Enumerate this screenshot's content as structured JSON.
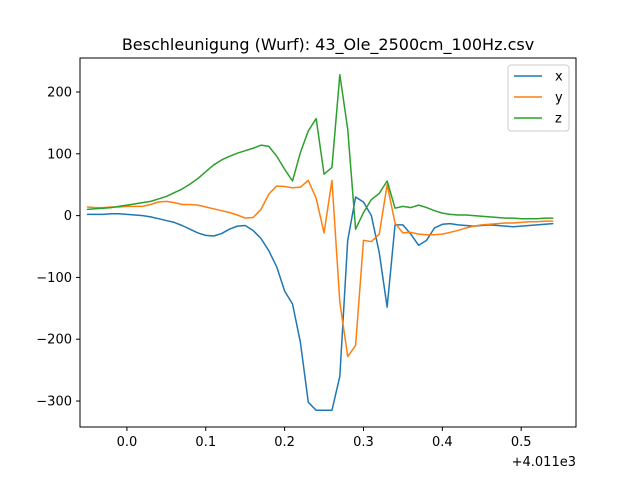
{
  "chart_data": {
    "type": "line",
    "title": "Beschleunigung (Wurf): 43_Ole_2500cm_100Hz.csv",
    "xlabel": "",
    "ylabel": "",
    "x_offset_label": "+4.011e3",
    "xlim": [
      -0.0595,
      0.5695
    ],
    "ylim": [
      -342,
      255
    ],
    "xticks": [
      0.0,
      0.1,
      0.2,
      0.3,
      0.4,
      0.5
    ],
    "xtick_labels": [
      "0.0",
      "0.1",
      "0.2",
      "0.3",
      "0.4",
      "0.5"
    ],
    "yticks": [
      -300,
      -200,
      -100,
      0,
      100,
      200
    ],
    "ytick_labels": [
      "−300",
      "−200",
      "−100",
      "0",
      "100",
      "200"
    ],
    "grid": false,
    "legend_position": "top-right",
    "x": [
      -0.05,
      -0.04,
      -0.03,
      -0.02,
      -0.01,
      0.0,
      0.01,
      0.02,
      0.03,
      0.04,
      0.05,
      0.06,
      0.07,
      0.08,
      0.09,
      0.1,
      0.11,
      0.12,
      0.13,
      0.14,
      0.15,
      0.16,
      0.17,
      0.18,
      0.19,
      0.2,
      0.21,
      0.22,
      0.23,
      0.24,
      0.25,
      0.26,
      0.27,
      0.28,
      0.29,
      0.3,
      0.31,
      0.32,
      0.33,
      0.34,
      0.35,
      0.36,
      0.37,
      0.38,
      0.39,
      0.4,
      0.41,
      0.42,
      0.43,
      0.44,
      0.45,
      0.46,
      0.47,
      0.48,
      0.49,
      0.5,
      0.51,
      0.52,
      0.53,
      0.54
    ],
    "series": [
      {
        "name": "x",
        "color": "#1f77b4",
        "values": [
          2,
          2,
          2,
          3,
          3,
          2,
          1,
          0,
          -2,
          -5,
          -8,
          -11,
          -16,
          -22,
          -28,
          -32,
          -33,
          -29,
          -22,
          -17,
          -16,
          -24,
          -37,
          -57,
          -83,
          -122,
          -143,
          -205,
          -302,
          -315,
          -315,
          -315,
          -260,
          -40,
          30,
          22,
          0,
          -60,
          -148,
          -15,
          -15,
          -30,
          -48,
          -40,
          -20,
          -14,
          -13,
          -15,
          -16,
          -17,
          -16,
          -15,
          -16,
          -17,
          -18,
          -17,
          -16,
          -15,
          -14,
          -13
        ]
      },
      {
        "name": "y",
        "color": "#ff7f0e",
        "values": [
          14,
          13,
          13,
          14,
          14,
          15,
          15,
          15,
          18,
          22,
          23,
          21,
          18,
          18,
          17,
          14,
          11,
          8,
          5,
          1,
          -4,
          -3,
          10,
          35,
          48,
          47,
          45,
          46,
          57,
          28,
          -28,
          57,
          -140,
          -228,
          -210,
          -40,
          -42,
          -30,
          50,
          -12,
          -28,
          -27,
          -30,
          -31,
          -31,
          -30,
          -27,
          -24,
          -20,
          -17,
          -15,
          -14,
          -13,
          -12,
          -12,
          -11,
          -10,
          -10,
          -9,
          -9
        ]
      },
      {
        "name": "z",
        "color": "#2ca02c",
        "values": [
          10,
          11,
          12,
          13,
          15,
          17,
          19,
          21,
          23,
          27,
          31,
          37,
          43,
          51,
          60,
          71,
          82,
          90,
          96,
          101,
          105,
          109,
          114,
          112,
          96,
          75,
          56,
          102,
          137,
          157,
          67,
          78,
          228,
          140,
          -22,
          5,
          26,
          36,
          56,
          12,
          15,
          13,
          17,
          13,
          8,
          4,
          2,
          1,
          1,
          0,
          -1,
          -2,
          -3,
          -4,
          -4,
          -5,
          -5,
          -5,
          -4,
          -4
        ]
      }
    ]
  }
}
